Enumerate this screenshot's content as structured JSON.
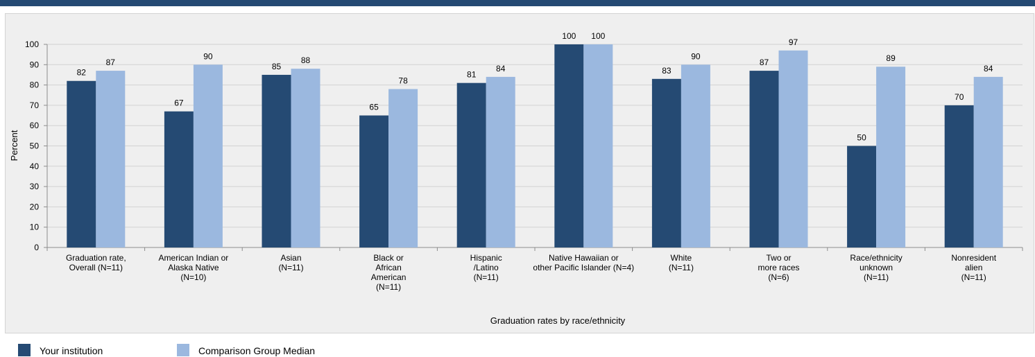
{
  "chart_data": {
    "type": "bar",
    "xlabel": "Graduation rates by race/ethnicity",
    "ylabel": "Percent",
    "ylim": [
      0,
      100
    ],
    "yticks": [
      0,
      10,
      20,
      30,
      40,
      50,
      60,
      70,
      80,
      90,
      100
    ],
    "grid": true,
    "legend_position": "bottom-left",
    "categories": [
      [
        "Graduation rate,",
        "Overall (N=11)"
      ],
      [
        "American Indian or",
        "Alaska Native",
        "(N=10)"
      ],
      [
        "Asian",
        "(N=11)"
      ],
      [
        "Black or",
        "African",
        "American",
        "(N=11)"
      ],
      [
        "Hispanic",
        "/Latino",
        "(N=11)"
      ],
      [
        "Native Hawaiian or",
        "other Pacific Islander (N=4)"
      ],
      [
        "White",
        "(N=11)"
      ],
      [
        "Two or",
        "more races",
        "(N=6)"
      ],
      [
        "Race/ethnicity",
        "unknown",
        "(N=11)"
      ],
      [
        "Nonresident",
        "alien",
        "(N=11)"
      ]
    ],
    "series": [
      {
        "name": "Your institution",
        "color": "#254a73",
        "values": [
          82,
          67,
          85,
          65,
          81,
          100,
          83,
          87,
          50,
          70
        ]
      },
      {
        "name": "Comparison Group Median",
        "color": "#9bb8df",
        "values": [
          87,
          90,
          88,
          78,
          84,
          100,
          90,
          97,
          89,
          84
        ]
      }
    ]
  }
}
